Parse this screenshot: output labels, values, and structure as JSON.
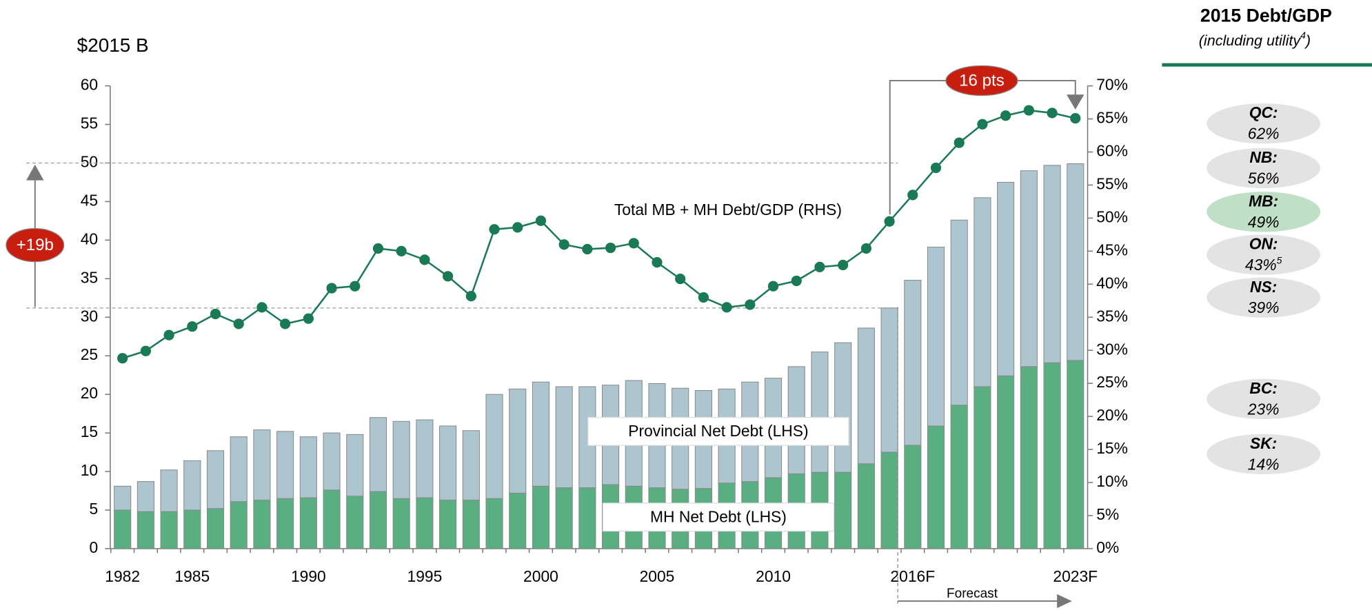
{
  "chart_data": {
    "type": "bar",
    "title": "$2015 B",
    "categories": [
      "1982",
      null,
      null,
      "1985",
      null,
      null,
      null,
      null,
      "1990",
      null,
      null,
      null,
      null,
      "1995",
      null,
      null,
      null,
      null,
      "2000",
      null,
      null,
      null,
      null,
      "2005",
      null,
      null,
      null,
      null,
      "2010",
      null,
      null,
      null,
      null,
      null,
      "2016F",
      null,
      null,
      null,
      null,
      null,
      null,
      "2023F"
    ],
    "series": [
      {
        "name": "MH Net Debt (LHS)",
        "color": "#5aaf82",
        "values": [
          5.0,
          4.8,
          4.8,
          5.0,
          5.2,
          6.1,
          6.3,
          6.5,
          6.6,
          7.6,
          6.8,
          7.4,
          6.5,
          6.6,
          6.3,
          6.3,
          6.5,
          7.2,
          8.1,
          7.9,
          7.9,
          8.3,
          8.1,
          7.9,
          7.7,
          7.8,
          8.5,
          8.7,
          9.2,
          9.7,
          9.9,
          9.9,
          11.0,
          12.5,
          13.4,
          15.9,
          18.6,
          21.0,
          22.4,
          23.6,
          24.1,
          24.4
        ]
      },
      {
        "name": "Provincial Net Debt (LHS)",
        "color": "#adc5cf",
        "values": [
          3.1,
          3.9,
          5.4,
          6.4,
          7.5,
          8.4,
          9.1,
          8.7,
          7.9,
          7.4,
          8.0,
          9.6,
          10.0,
          10.1,
          9.6,
          9.0,
          13.5,
          13.5,
          13.5,
          13.1,
          13.1,
          12.9,
          13.7,
          13.5,
          13.1,
          12.7,
          12.2,
          12.9,
          12.9,
          13.9,
          15.6,
          16.8,
          17.6,
          18.7,
          21.4,
          23.2,
          24.0,
          24.5,
          25.1,
          25.4,
          25.6,
          25.5
        ]
      },
      {
        "name": "Total MB + MH Debt/GDP (RHS)",
        "color": "#1a7a55",
        "axis": "y2",
        "type": "line",
        "values": [
          28.8,
          29.9,
          32.3,
          33.6,
          35.5,
          34.0,
          36.5,
          34.0,
          34.8,
          39.4,
          39.7,
          45.4,
          45.0,
          43.7,
          41.2,
          38.2,
          48.3,
          48.6,
          49.6,
          46.0,
          45.3,
          45.5,
          46.2,
          43.3,
          40.8,
          38.0,
          36.5,
          36.9,
          39.7,
          40.5,
          42.6,
          42.9,
          45.4,
          49.5,
          53.5,
          57.6,
          61.4,
          64.2,
          65.5,
          66.3,
          65.9,
          65.1
        ]
      }
    ],
    "stacked": true,
    "ylim": [
      0,
      60
    ],
    "yticks": [
      0,
      5,
      10,
      15,
      20,
      25,
      30,
      35,
      40,
      45,
      50,
      55,
      60
    ],
    "y2lim": [
      0,
      70
    ],
    "y2ticks": [
      {
        "value": 0,
        "label": "0%"
      },
      {
        "value": 5,
        "label": "5%"
      },
      {
        "value": 10,
        "label": "10%"
      },
      {
        "value": 15,
        "label": "15%"
      },
      {
        "value": 20,
        "label": "20%"
      },
      {
        "value": 25,
        "label": "25%"
      },
      {
        "value": 30,
        "label": "30%"
      },
      {
        "value": 35,
        "label": "35%"
      },
      {
        "value": 40,
        "label": "40%"
      },
      {
        "value": 45,
        "label": "45%"
      },
      {
        "value": 50,
        "label": "50%"
      },
      {
        "value": 55,
        "label": "55%"
      },
      {
        "value": 60,
        "label": "60%"
      },
      {
        "value": 65,
        "label": "65%"
      },
      {
        "value": 70,
        "label": "70%"
      }
    ],
    "annotations": {
      "growth": "+19b",
      "points": "16 pts",
      "forecast": "Forecast"
    }
  },
  "panel": {
    "title": "2015 Debt/GDP",
    "subtitle": "(including utility",
    "subtitle_sup": "4",
    "subtitle_end": ")",
    "provinces": [
      {
        "name": "QC:",
        "value": "62%"
      },
      {
        "name": "NB:",
        "value": "56%"
      },
      {
        "name": "MB:",
        "value": "49%"
      },
      {
        "name": "ON:",
        "value": "43%",
        "sup": "5"
      },
      {
        "name": "NS:",
        "value": "39%"
      },
      {
        "name": "BC:",
        "value": "23%"
      },
      {
        "name": "SK:",
        "value": "14%"
      }
    ]
  }
}
